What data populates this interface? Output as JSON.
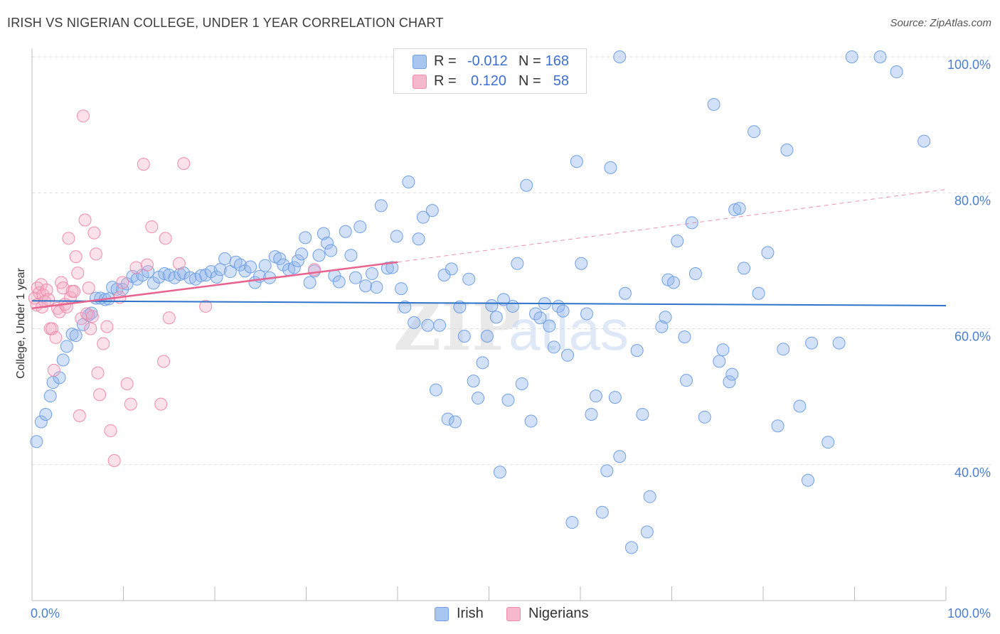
{
  "header": {
    "title": "IRISH VS NIGERIAN COLLEGE, UNDER 1 YEAR CORRELATION CHART",
    "source": "Source: ZipAtlas.com"
  },
  "legend": {
    "rows": [
      {
        "r_label": "R =",
        "r_value": "-0.012",
        "n_label": "N =",
        "n_value": "168",
        "color": "#a8c6f0"
      },
      {
        "r_label": "R =",
        "r_value": "0.120",
        "n_label": "N =",
        "n_value": "58",
        "color": "#f5b8cc"
      }
    ]
  },
  "watermark": {
    "part1": "ZIP",
    "part2": "atlas"
  },
  "chart_data": {
    "type": "scatter",
    "title": "IRISH VS NIGERIAN COLLEGE, UNDER 1 YEAR CORRELATION CHART",
    "xlabel": "",
    "ylabel": "College, Under 1 year",
    "xlim": [
      0,
      100
    ],
    "ylim": [
      20,
      102
    ],
    "x_tick_labels": [
      {
        "value": 0,
        "label": "0.0%"
      },
      {
        "value": 100,
        "label": "100.0%"
      }
    ],
    "y_tick_labels": [
      {
        "value": 40,
        "label": "40.0%"
      },
      {
        "value": 60,
        "label": "60.0%"
      },
      {
        "value": 80,
        "label": "80.0%"
      },
      {
        "value": 100,
        "label": "100.0%"
      }
    ],
    "grid": "horizontal-dashed",
    "legend_position": "top-center",
    "colors": {
      "irish": "#6fa0e6",
      "nigerians": "#f08cab",
      "irish_line": "#2f74c9",
      "nigerians_line": "#e8648e"
    },
    "series": [
      {
        "name": "Irish",
        "r": -0.012,
        "n": 168,
        "trend": {
          "x": [
            0,
            100
          ],
          "y": [
            64.1,
            63.4
          ]
        },
        "points": [
          [
            0.5,
            43.4
          ],
          [
            1,
            46.3
          ],
          [
            1.5,
            47.4
          ],
          [
            2,
            50.1
          ],
          [
            2.3,
            52.1
          ],
          [
            3,
            52.8
          ],
          [
            3.4,
            55.4
          ],
          [
            3.8,
            57.4
          ],
          [
            4.4,
            59.2
          ],
          [
            4.8,
            59.0
          ],
          [
            5.6,
            60.6
          ],
          [
            6.2,
            62.0
          ],
          [
            6.5,
            62.3
          ],
          [
            7,
            64.5
          ],
          [
            7.5,
            64.5
          ],
          [
            8,
            64.3
          ],
          [
            8.4,
            64.4
          ],
          [
            8.8,
            66.1
          ],
          [
            9.3,
            65.8
          ],
          [
            9.9,
            65.8
          ],
          [
            10.4,
            66.6
          ],
          [
            11,
            67.7
          ],
          [
            11.5,
            67.3
          ],
          [
            12.1,
            67.9
          ],
          [
            12.7,
            68.4
          ],
          [
            13.3,
            66.7
          ],
          [
            13.9,
            67.6
          ],
          [
            14.5,
            68.1
          ],
          [
            15,
            67.9
          ],
          [
            15.6,
            67.5
          ],
          [
            16.2,
            68.0
          ],
          [
            16.6,
            68.2
          ],
          [
            17.3,
            67.5
          ],
          [
            17.9,
            67.3
          ],
          [
            18.5,
            67.8
          ],
          [
            19,
            67.9
          ],
          [
            19.6,
            68.4
          ],
          [
            20.2,
            67.6
          ],
          [
            20.6,
            68.7
          ],
          [
            21.1,
            70.3
          ],
          [
            21.7,
            68.4
          ],
          [
            22.3,
            69.8
          ],
          [
            22.8,
            69.4
          ],
          [
            23.3,
            68.5
          ],
          [
            23.9,
            69.1
          ],
          [
            24.4,
            66.8
          ],
          [
            24.9,
            67.7
          ],
          [
            25.5,
            69.3
          ],
          [
            26,
            67.5
          ],
          [
            26.6,
            70.6
          ],
          [
            27.1,
            70.3
          ],
          [
            27.5,
            69.4
          ],
          [
            28.1,
            68.7
          ],
          [
            28.7,
            69.0
          ],
          [
            29.1,
            70.0
          ],
          [
            29.5,
            71.0
          ],
          [
            29.9,
            73.4
          ],
          [
            30.4,
            66.8
          ],
          [
            30.9,
            68.5
          ],
          [
            31.4,
            70.8
          ],
          [
            31.9,
            74.0
          ],
          [
            32.3,
            72.6
          ],
          [
            32.7,
            71.5
          ],
          [
            33.1,
            67.8
          ],
          [
            33.6,
            66.9
          ],
          [
            34.3,
            74.3
          ],
          [
            34.9,
            70.8
          ],
          [
            35.4,
            67.5
          ],
          [
            35.9,
            75.0
          ],
          [
            36.5,
            66.3
          ],
          [
            37.2,
            68.1
          ],
          [
            37.7,
            66.1
          ],
          [
            38.2,
            78.1
          ],
          [
            38.9,
            68.9
          ],
          [
            39.4,
            69.0
          ],
          [
            39.9,
            73.6
          ],
          [
            40.4,
            65.9
          ],
          [
            40.8,
            63.2
          ],
          [
            41.2,
            81.6
          ],
          [
            41.8,
            60.9
          ],
          [
            42.3,
            73.2
          ],
          [
            42.8,
            76.4
          ],
          [
            43.3,
            60.5
          ],
          [
            43.8,
            77.4
          ],
          [
            44.2,
            51.0
          ],
          [
            44.6,
            60.5
          ],
          [
            45.1,
            67.9
          ],
          [
            45.5,
            46.7
          ],
          [
            45.9,
            68.8
          ],
          [
            46.3,
            46.3
          ],
          [
            46.8,
            63.2
          ],
          [
            47.3,
            58.9
          ],
          [
            47.8,
            67.3
          ],
          [
            48.3,
            52.3
          ],
          [
            48.8,
            49.8
          ],
          [
            49.3,
            55.0
          ],
          [
            49.8,
            58.9
          ],
          [
            50.3,
            63.4
          ],
          [
            50.8,
            61.7
          ],
          [
            51.2,
            38.9
          ],
          [
            51.6,
            64.3
          ],
          [
            52.1,
            49.5
          ],
          [
            52.6,
            63.3
          ],
          [
            53.1,
            69.6
          ],
          [
            53.6,
            51.9
          ],
          [
            54.1,
            81.1
          ],
          [
            54.6,
            46.4
          ],
          [
            55.1,
            62.2
          ],
          [
            55.6,
            61.6
          ],
          [
            56.1,
            63.7
          ],
          [
            56.6,
            60.4
          ],
          [
            57.1,
            57.3
          ],
          [
            57.6,
            63.3
          ],
          [
            58.1,
            62.6
          ],
          [
            58.6,
            56.1
          ],
          [
            59.1,
            31.5
          ],
          [
            59.6,
            84.6
          ],
          [
            60.1,
            69.6
          ],
          [
            60.7,
            62.2
          ],
          [
            61.2,
            47.4
          ],
          [
            61.7,
            50.1
          ],
          [
            62.4,
            33.0
          ],
          [
            62.9,
            39.1
          ],
          [
            63.3,
            83.7
          ],
          [
            63.8,
            49.9
          ],
          [
            64.3,
            41.2
          ],
          [
            64.9,
            65.2
          ],
          [
            65.6,
            27.8
          ],
          [
            66.2,
            56.8
          ],
          [
            66.8,
            47.4
          ],
          [
            67.3,
            30.1
          ],
          [
            67.6,
            35.3
          ],
          [
            68.9,
            60.3
          ],
          [
            69.3,
            61.7
          ],
          [
            69.6,
            67.2
          ],
          [
            70.2,
            66.8
          ],
          [
            70.6,
            72.9
          ],
          [
            71.4,
            58.8
          ],
          [
            71.6,
            52.4
          ],
          [
            72.2,
            75.6
          ],
          [
            72.6,
            68.1
          ],
          [
            73.6,
            47.0
          ],
          [
            74.6,
            93.0
          ],
          [
            75.2,
            55.2
          ],
          [
            75.6,
            56.9
          ],
          [
            76.3,
            52.2
          ],
          [
            76.6,
            53.3
          ],
          [
            76.9,
            77.5
          ],
          [
            77.4,
            77.7
          ],
          [
            77.9,
            68.9
          ],
          [
            79.0,
            89.0
          ],
          [
            79.5,
            65.2
          ],
          [
            80.5,
            71.2
          ],
          [
            81.6,
            45.7
          ],
          [
            82.2,
            57.0
          ],
          [
            82.6,
            86.3
          ],
          [
            84.0,
            48.6
          ],
          [
            84.9,
            37.7
          ],
          [
            85.3,
            57.9
          ],
          [
            87.1,
            43.3
          ],
          [
            88.3,
            57.9
          ],
          [
            89.7,
            100.0
          ],
          [
            92.8,
            100.0
          ],
          [
            94.6,
            97.8
          ],
          [
            97.6,
            87.6
          ],
          [
            64.3,
            100.0
          ]
        ]
      },
      {
        "name": "Nigerians",
        "r": 0.12,
        "n": 58,
        "trend": {
          "x": [
            0,
            40
          ],
          "y": [
            63.0,
            69.8
          ],
          "dashed_to": {
            "x": 100,
            "y": 80.5
          }
        },
        "points": [
          [
            0.3,
            64.5
          ],
          [
            0.5,
            63.5
          ],
          [
            0.6,
            66.0
          ],
          [
            0.8,
            65.3
          ],
          [
            1.0,
            66.5
          ],
          [
            1.1,
            63.2
          ],
          [
            1.2,
            65.0
          ],
          [
            1.4,
            64.0
          ],
          [
            1.6,
            65.7
          ],
          [
            1.8,
            64.3
          ],
          [
            2.0,
            60.0
          ],
          [
            2.2,
            60.0
          ],
          [
            2.4,
            53.9
          ],
          [
            2.6,
            58.7
          ],
          [
            2.8,
            63.0
          ],
          [
            3.0,
            62.5
          ],
          [
            3.2,
            66.8
          ],
          [
            3.4,
            66.0
          ],
          [
            3.6,
            63.6
          ],
          [
            3.8,
            63.2
          ],
          [
            4.0,
            73.3
          ],
          [
            4.2,
            64.6
          ],
          [
            4.4,
            65.5
          ],
          [
            4.6,
            65.5
          ],
          [
            4.8,
            70.6
          ],
          [
            5.0,
            68.2
          ],
          [
            5.2,
            47.2
          ],
          [
            5.4,
            61.5
          ],
          [
            5.6,
            91.3
          ],
          [
            5.8,
            76.0
          ],
          [
            6.0,
            62.2
          ],
          [
            6.2,
            66.0
          ],
          [
            6.4,
            60.0
          ],
          [
            6.6,
            61.8
          ],
          [
            6.8,
            74.1
          ],
          [
            7.0,
            71.0
          ],
          [
            7.2,
            53.5
          ],
          [
            7.4,
            50.3
          ],
          [
            7.8,
            57.8
          ],
          [
            8.2,
            60.3
          ],
          [
            8.6,
            45.0
          ],
          [
            9.0,
            40.6
          ],
          [
            9.6,
            64.6
          ],
          [
            9.9,
            66.8
          ],
          [
            10.4,
            51.9
          ],
          [
            10.8,
            48.9
          ],
          [
            11.4,
            69.0
          ],
          [
            12.2,
            84.2
          ],
          [
            12.6,
            69.4
          ],
          [
            13.1,
            75.0
          ],
          [
            14.1,
            48.9
          ],
          [
            14.4,
            55.2
          ],
          [
            14.6,
            73.3
          ],
          [
            15.0,
            61.6
          ],
          [
            16.1,
            69.6
          ],
          [
            16.6,
            84.3
          ],
          [
            19.0,
            63.3
          ],
          [
            30.9,
            68.7
          ]
        ]
      }
    ]
  },
  "bottom_legend": {
    "items": [
      {
        "label": "Irish",
        "color": "#a8c6f0"
      },
      {
        "label": "Nigerians",
        "color": "#f5b8cc"
      }
    ]
  }
}
